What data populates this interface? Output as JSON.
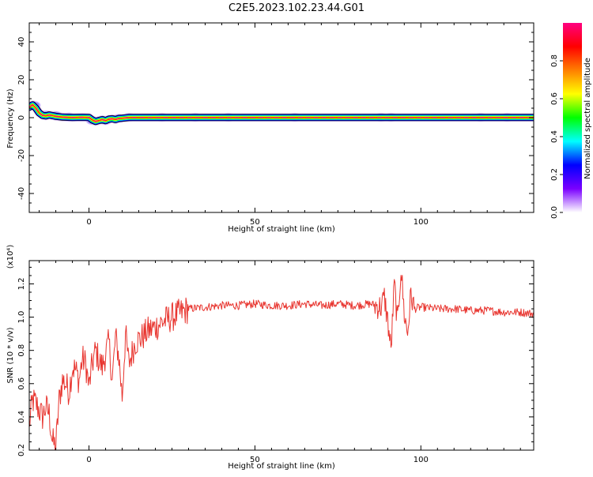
{
  "title": "C2E5.2023.102.23.44.G01",
  "colorbar": {
    "label": "Normalized spectral amplitude",
    "range": [
      0,
      1
    ],
    "ticks": [
      "0.0",
      "0.2",
      "0.4",
      "0.6",
      "0.8"
    ],
    "tick_values": [
      0.0,
      0.2,
      0.4,
      0.6,
      0.8
    ],
    "colors": [
      "#ffffff",
      "#7a00ff",
      "#0000ff",
      "#00ffff",
      "#00ff00",
      "#ffff00",
      "#ff7f00",
      "#ff0000",
      "#ff0080"
    ]
  },
  "chart_data": [
    {
      "type": "heatmap",
      "xlabel": "Height of straight line (km)",
      "ylabel": "Frequency (Hz)",
      "xlim": [
        -18,
        134
      ],
      "ylim": [
        -50,
        50
      ],
      "xticks": [
        0,
        50,
        100
      ],
      "xtick_labels": [
        "0",
        "50",
        "100"
      ],
      "yticks": [
        40,
        20,
        0,
        -20,
        -40
      ],
      "ytick_labels": [
        "40",
        "20",
        "0",
        "-20",
        "-40"
      ],
      "ridge": {
        "x": [
          -18,
          -17,
          -16,
          -15,
          -14,
          -13,
          -12,
          -11,
          -10,
          -8,
          -5,
          -2,
          0,
          1,
          2,
          3,
          4,
          5,
          6,
          7,
          8,
          9,
          10,
          12,
          14,
          20,
          30,
          60,
          90,
          120,
          134
        ],
        "freq": [
          5.5,
          6.8,
          5.0,
          2.5,
          1.2,
          0.9,
          1.4,
          1.1,
          0.7,
          0.3,
          0.1,
          0.2,
          0.1,
          -1.2,
          -2.0,
          -1.5,
          -1.0,
          -1.6,
          -0.8,
          -0.6,
          -1.0,
          -0.4,
          -0.3,
          0.1,
          0.1,
          0.1,
          0.1,
          0.1,
          0.1,
          0.1,
          0.1
        ]
      },
      "spots": [
        {
          "x": -16.5,
          "f": 6.5
        },
        {
          "x": -13,
          "f": 1.5
        },
        {
          "x": -10,
          "f": 1.2
        },
        {
          "x": -6,
          "f": 0.4
        },
        {
          "x": 1,
          "f": -1.5
        },
        {
          "x": 5,
          "f": -1.5
        },
        {
          "x": 9,
          "f": -0.3
        },
        {
          "x": 12,
          "f": 0.2
        },
        {
          "x": 22,
          "f": 0.2
        },
        {
          "x": 32,
          "f": 0.2
        },
        {
          "x": 42,
          "f": 0.2
        },
        {
          "x": 62,
          "f": 0.2
        },
        {
          "x": 88,
          "f": 0.2
        },
        {
          "x": 91,
          "f": 0.2
        },
        {
          "x": 118,
          "f": 0.2
        },
        {
          "x": 126,
          "f": 0.2
        }
      ]
    },
    {
      "type": "line",
      "xlabel": "Height of straight line (km)",
      "ylabel": "SNR (10 * v/v)",
      "multiplier": "(x10⁴)",
      "xlim": [
        -18,
        134
      ],
      "ylim": [
        0.2,
        1.34
      ],
      "xticks": [
        0,
        50,
        100
      ],
      "xtick_labels": [
        "0",
        "50",
        "100"
      ],
      "yticks": [
        0.2,
        0.4,
        0.6,
        0.8,
        1.0,
        1.2
      ],
      "ytick_labels": [
        "0.2",
        "0.4",
        "0.6",
        "0.8",
        "1.0",
        "1.2"
      ],
      "series": [
        {
          "color": "#e8352f",
          "x": [
            -18,
            -17,
            -16,
            -15,
            -14,
            -13,
            -12,
            -11,
            -10,
            -9,
            -8,
            -7,
            -6,
            -5,
            -4,
            -3,
            -2,
            -1,
            0,
            1,
            2,
            3,
            4,
            5,
            6,
            7,
            8,
            9,
            10,
            11,
            12,
            14,
            16,
            18,
            20,
            22,
            25,
            28,
            30,
            35,
            40,
            45,
            50,
            55,
            60,
            65,
            70,
            75,
            80,
            85,
            88,
            89,
            90,
            91,
            92,
            93,
            94,
            95,
            96,
            97,
            98,
            100,
            105,
            110,
            115,
            120,
            125,
            130,
            134
          ],
          "y": [
            0.35,
            0.5,
            0.48,
            0.44,
            0.4,
            0.46,
            0.42,
            0.25,
            0.22,
            0.5,
            0.62,
            0.6,
            0.55,
            0.7,
            0.68,
            0.62,
            0.75,
            0.72,
            0.58,
            0.72,
            0.8,
            0.74,
            0.7,
            0.78,
            0.85,
            0.62,
            0.88,
            0.76,
            0.52,
            0.9,
            0.72,
            0.85,
            0.88,
            0.92,
            0.94,
            0.97,
            1.0,
            1.03,
            1.05,
            1.06,
            1.07,
            1.07,
            1.08,
            1.07,
            1.07,
            1.08,
            1.07,
            1.08,
            1.07,
            1.08,
            1.06,
            1.12,
            0.98,
            0.8,
            1.2,
            0.96,
            1.3,
            1.02,
            0.9,
            1.14,
            1.05,
            1.06,
            1.05,
            1.05,
            1.04,
            1.04,
            1.03,
            1.03,
            1.02
          ]
        }
      ]
    }
  ]
}
